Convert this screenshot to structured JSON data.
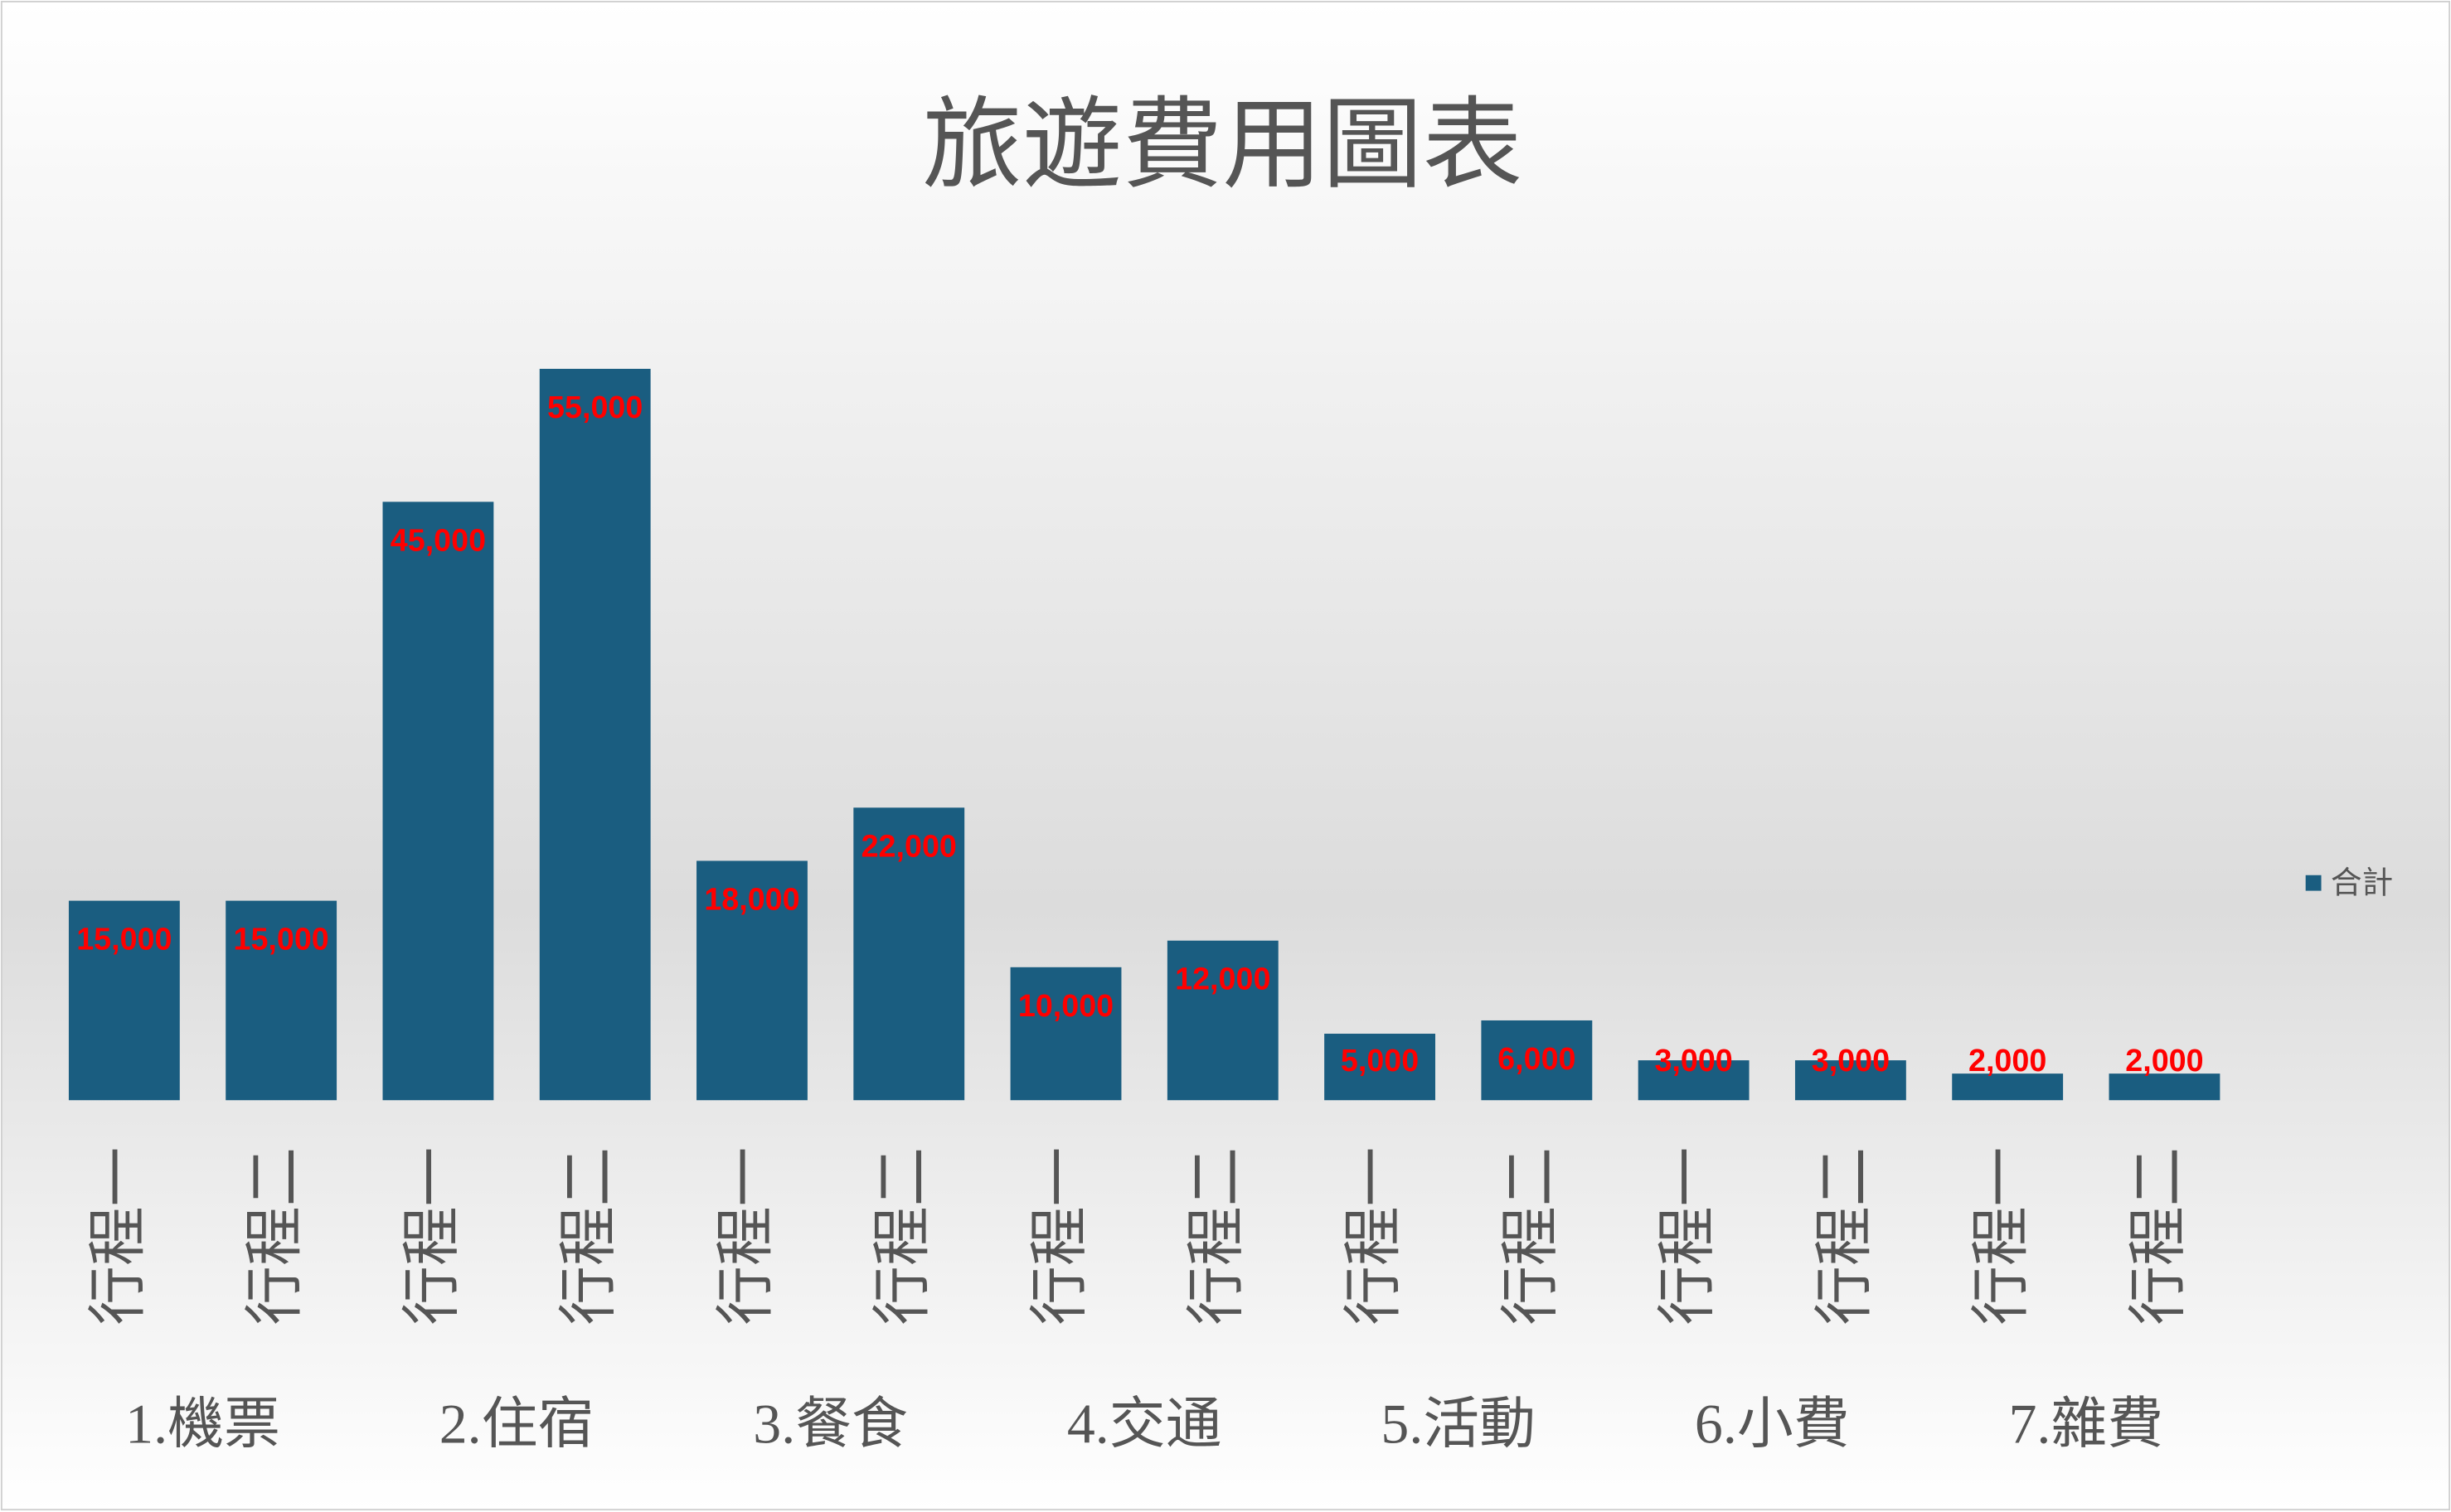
{
  "chart_data": {
    "type": "bar",
    "title": "旅遊費用圖表",
    "categories": [
      "行程一",
      "行程二",
      "行程一",
      "行程二",
      "行程一",
      "行程二",
      "行程一",
      "行程二",
      "行程一",
      "行程二",
      "行程一",
      "行程二",
      "行程一",
      "行程二"
    ],
    "groups": [
      "1.機票",
      "2.住宿",
      "3.餐食",
      "4.交通",
      "5.活動",
      "6.小費",
      "7.雜費"
    ],
    "series": [
      {
        "name": "合計",
        "color": "#1a5d80",
        "values": [
          15000,
          15000,
          45000,
          55000,
          18000,
          22000,
          10000,
          12000,
          5000,
          6000,
          3000,
          3000,
          2000,
          2000
        ],
        "value_labels": [
          "15,000",
          "15,000",
          "45,000",
          "55,000",
          "18,000",
          "22,000",
          "10,000",
          "12,000",
          "5,000",
          "6,000",
          "3,000",
          "3,000",
          "2,000",
          "2,000"
        ]
      }
    ],
    "legend": "right",
    "label_color": "#ff0000"
  }
}
